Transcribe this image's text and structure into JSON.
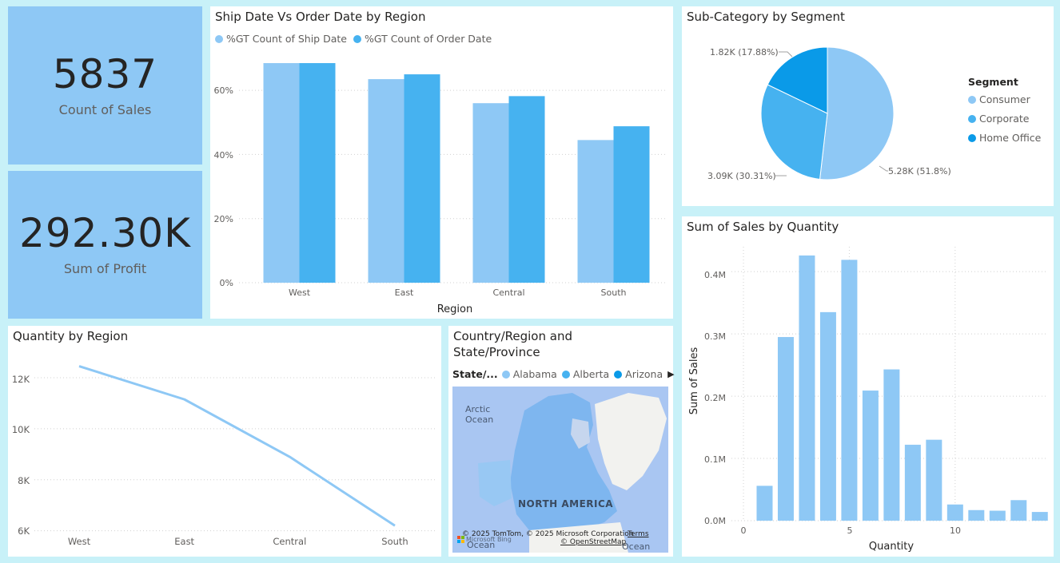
{
  "cards": [
    {
      "value": "5837",
      "label": "Count of Sales"
    },
    {
      "value": "292.30K",
      "label": "Sum of Profit"
    }
  ],
  "colors": {
    "light": "#8ec8f5",
    "mid": "#46b2f0",
    "dark": "#0a9ae8"
  },
  "ship_chart": {
    "title": "Ship Date Vs Order Date by Region",
    "legend": [
      "%GT Count of Ship Date",
      "%GT Count of Order Date"
    ],
    "xlabel": "Region",
    "y_ticks": [
      "0%",
      "20%",
      "40%",
      "60%"
    ]
  },
  "segment_chart": {
    "title": "Sub-Category by Segment",
    "legend_title": "Segment",
    "legend": [
      "Consumer",
      "Corporate",
      "Home Office"
    ],
    "slice_labels": [
      "5.28K (51.8%)",
      "3.09K (30.31%)",
      "1.82K (17.88%)"
    ]
  },
  "sales_chart": {
    "title": "Sum of Sales by Quantity",
    "xlabel": "Quantity",
    "ylabel": "Sum of Sales",
    "y_ticks": [
      "0.0M",
      "0.1M",
      "0.2M",
      "0.3M",
      "0.4M"
    ],
    "x_ticks": [
      "0",
      "5",
      "10"
    ]
  },
  "quantity_chart": {
    "title": "Quantity by Region",
    "y_ticks": [
      "6K",
      "8K",
      "10K",
      "12K"
    ]
  },
  "map": {
    "title_line1": "Country/Region and",
    "title_line2": "State/Province",
    "legend_label": "State/...",
    "legend": [
      "Alabama",
      "Alberta",
      "Arizona"
    ],
    "label_arctic_1": "Arctic",
    "label_arctic_2": "Ocean",
    "label_continent": "NORTH AMERICA",
    "copyright": "© 2025 TomTom, © 2025 Microsoft Corporation",
    "terms": "Terms",
    "osm": "© OpenStreetMap",
    "bing": "Microsoft Bing",
    "ocean_left": "Ocean",
    "ocean_right": "Ocean"
  },
  "chart_data": [
    {
      "type": "bar",
      "title": "Ship Date Vs Order Date by Region",
      "xlabel": "Region",
      "ylabel": "",
      "categories": [
        "West",
        "East",
        "Central",
        "South"
      ],
      "series": [
        {
          "name": "%GT Count of Ship Date",
          "values": [
            68.5,
            63.5,
            56,
            44.5
          ]
        },
        {
          "name": "%GT Count of Order Date",
          "values": [
            68.5,
            65,
            58.2,
            48.8
          ]
        }
      ],
      "ylim": [
        0,
        70
      ],
      "grid": true,
      "legend": "top-left"
    },
    {
      "type": "pie",
      "title": "Sub-Category by Segment",
      "categories": [
        "Consumer",
        "Corporate",
        "Home Office"
      ],
      "values": [
        5280,
        3090,
        1820
      ],
      "percents": [
        51.8,
        30.31,
        17.88
      ],
      "legend": "right"
    },
    {
      "type": "bar",
      "title": "Sum of Sales by Quantity",
      "xlabel": "Quantity",
      "ylabel": "Sum of Sales",
      "x": [
        1,
        2,
        3,
        4,
        5,
        6,
        7,
        8,
        9,
        10,
        11,
        12,
        13,
        14
      ],
      "values": [
        0.056,
        0.295,
        0.426,
        0.335,
        0.419,
        0.209,
        0.243,
        0.122,
        0.13,
        0.026,
        0.017,
        0.016,
        0.033,
        0.014
      ],
      "unit": "M",
      "xlim": [
        0,
        14.5
      ],
      "ylim": [
        0,
        0.44
      ],
      "grid": true
    },
    {
      "type": "line",
      "title": "Quantity by Region",
      "categories": [
        "West",
        "East",
        "Central",
        "South"
      ],
      "values": [
        12450,
        11150,
        8900,
        6200
      ],
      "ylim": [
        5990,
        12750
      ],
      "grid": true
    }
  ]
}
